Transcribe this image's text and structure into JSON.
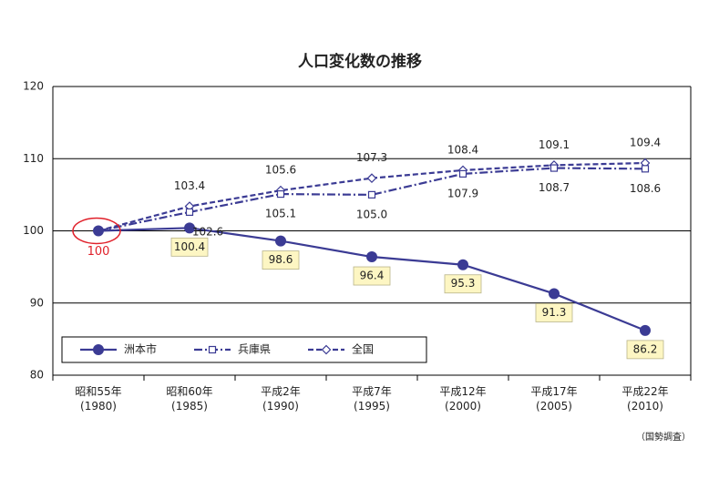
{
  "chart_data": {
    "type": "line",
    "title": "人口変化数の推移",
    "categories": [
      "昭和55年\n(1980)",
      "昭和60年\n(1985)",
      "平成2年\n(1990)",
      "平成7年\n(1995)",
      "平成12年\n(2000)",
      "平成17年\n(2005)",
      "平成22年\n(2010)"
    ],
    "series": [
      {
        "name": "洲本市",
        "color": "#3b3b94",
        "marker": "circle",
        "dash": "solid",
        "values": [
          100,
          100.4,
          98.6,
          96.4,
          95.3,
          91.3,
          86.2
        ],
        "value_labels": [
          "100",
          "100.4",
          "98.6",
          "96.4",
          "95.3",
          "91.3",
          "86.2"
        ]
      },
      {
        "name": "兵庫県",
        "color": "#3b3b94",
        "marker": "square",
        "dash": "dashdot",
        "values": [
          100,
          102.6,
          105.1,
          105.0,
          107.9,
          108.7,
          108.6
        ],
        "value_labels": [
          null,
          "102.6",
          "105.1",
          "105.0",
          "107.9",
          "108.7",
          "108.6"
        ]
      },
      {
        "name": "全国",
        "color": "#3b3b94",
        "marker": "diamond",
        "dash": "dashed",
        "values": [
          100,
          103.4,
          105.6,
          107.3,
          108.4,
          109.1,
          109.4
        ],
        "value_labels": [
          null,
          "103.4",
          "105.6",
          "107.3",
          "108.4",
          "109.1",
          "109.4"
        ]
      }
    ],
    "ylim": [
      80,
      120
    ],
    "yticks": [
      80,
      90,
      100,
      110,
      120
    ],
    "grid": true,
    "source": "（国勢調査）"
  }
}
